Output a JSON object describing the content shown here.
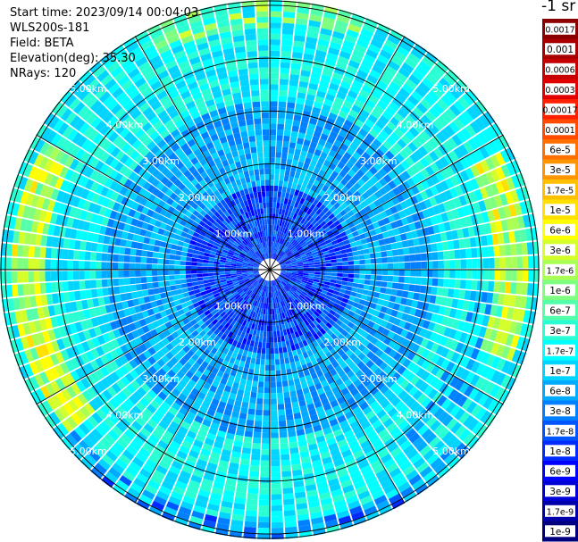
{
  "header": {
    "start_time": "Start time: 2023/09/14 00:04:03",
    "instrument": "WLS200s-181",
    "field": "Field: BETA",
    "elevation": "Elevation(deg): 35.30",
    "nrays": "NRays: 120"
  },
  "chart_data": {
    "type": "heatmap",
    "projection": "polar-ppi",
    "n_rays": 120,
    "field": "BETA",
    "elevation_deg": 35.3,
    "range_rings_km": [
      1.0,
      2.0,
      3.0,
      4.0,
      5.0
    ],
    "range_ring_labels": [
      "1.00km",
      "2.00km",
      "3.00km",
      "4.00km",
      "5.00km"
    ],
    "max_range_km": 5.1,
    "azimuth_spokes_deg": [
      0,
      30,
      60,
      90,
      120,
      150,
      180,
      210,
      240,
      270,
      300,
      330
    ],
    "colorbar": {
      "unit": "-1 sr",
      "orientation": "vertical",
      "position": "right",
      "labels": [
        "0.0017",
        "0.001",
        "0.0006",
        "0.0003",
        "0.00017",
        "0.0001",
        "6e-5",
        "3e-5",
        "1.7e-5",
        "1e-5",
        "6e-6",
        "3e-6",
        "1.7e-6",
        "1e-6",
        "6e-7",
        "3e-7",
        "1.7e-7",
        "1e-7",
        "6e-8",
        "3e-8",
        "1.7e-8",
        "1e-8",
        "6e-9",
        "3e-9",
        "1.7e-9",
        "1e-9"
      ],
      "colors": [
        "#8b0000",
        "#a80000",
        "#c40000",
        "#e00000",
        "#ff2000",
        "#ff4a00",
        "#ff7000",
        "#ff9500",
        "#ffc000",
        "#ffe000",
        "#ffff00",
        "#d4ff2a",
        "#aaff55",
        "#7fff7f",
        "#55ffaa",
        "#2affd4",
        "#00ffff",
        "#00d4ff",
        "#00aaff",
        "#0080ff",
        "#0055ff",
        "#002aff",
        "#0000ff",
        "#0000d4",
        "#0000aa",
        "#00007f"
      ]
    },
    "pattern_description_levels": {
      "near_range": "1e-7 to 3e-8",
      "mid_range": "1.7e-7 to 6e-7",
      "far_range": "1e-6 to 6e-6",
      "peaks": "1e-5 to 6e-5"
    }
  }
}
